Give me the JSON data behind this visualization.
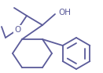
{
  "bg_color": "#ffffff",
  "line_color": "#5b5b9a",
  "line_width": 1.3,
  "font_size": 7.5,
  "figsize": [
    1.31,
    0.93
  ],
  "dpi": 100,
  "xlim": [
    0,
    131
  ],
  "ylim": [
    0,
    93
  ]
}
